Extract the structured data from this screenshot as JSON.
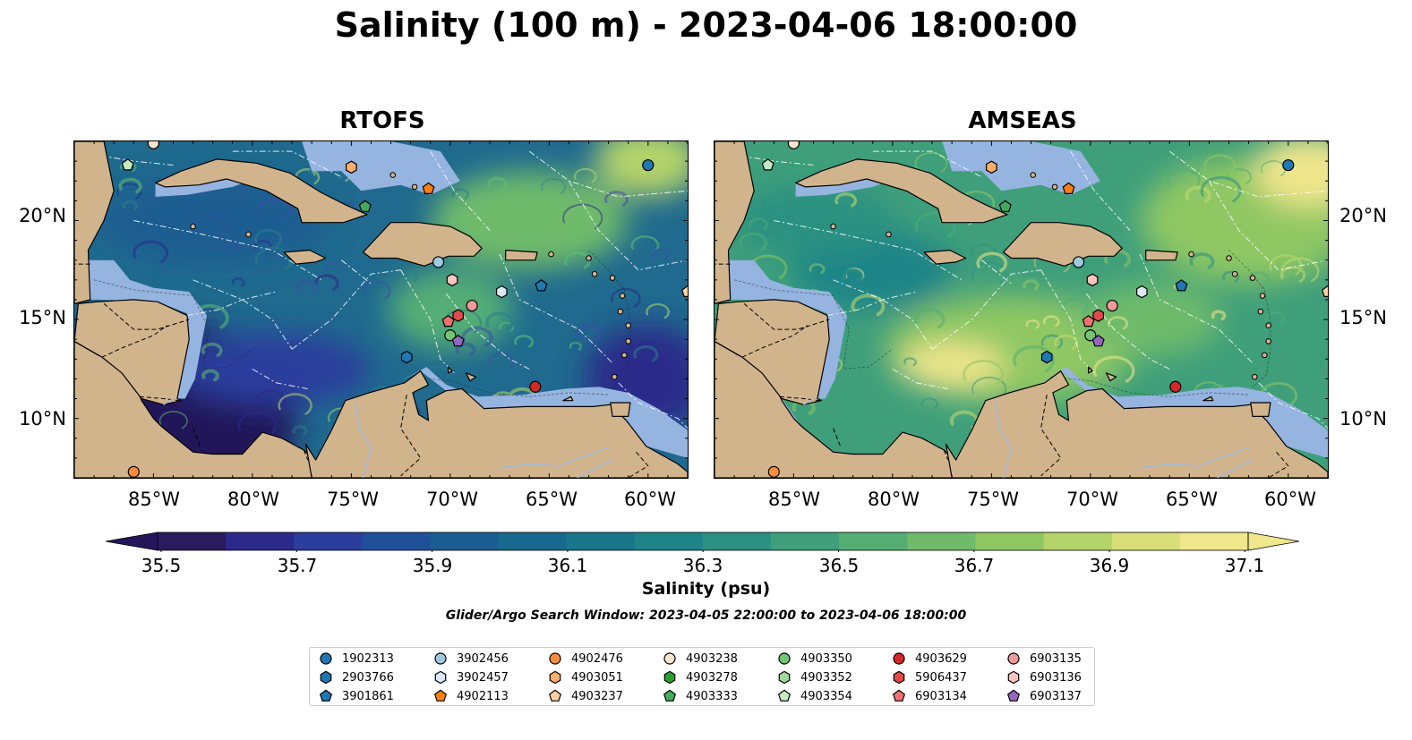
{
  "title": "Salinity (100 m) - 2023-04-06 18:00:00",
  "panels": [
    {
      "title": "RTOFS",
      "palette": "rtofs"
    },
    {
      "title": "AMSEAS",
      "palette": "amseas"
    }
  ],
  "axes": {
    "x_ticks": [
      "85°W",
      "80°W",
      "75°W",
      "70°W",
      "65°W",
      "60°W"
    ],
    "y_ticks": [
      "20°N",
      "15°N",
      "10°N"
    ],
    "lon_range": [
      -89,
      -58
    ],
    "lat_range": [
      7,
      24
    ]
  },
  "colorbar": {
    "label": "Salinity (psu)",
    "ticks": [
      "35.5",
      "35.7",
      "35.9",
      "36.1",
      "36.3",
      "36.5",
      "36.7",
      "36.9",
      "37.1"
    ],
    "colors": [
      "#2a1a5e",
      "#2b2a8a",
      "#2b3d9d",
      "#1f4f99",
      "#1a5d91",
      "#176a8d",
      "#1a768b",
      "#1f8488",
      "#2c9181",
      "#3f9f7b",
      "#55ae74",
      "#6fbb6b",
      "#8fc763",
      "#b4d36a",
      "#d8df78",
      "#f0e68c"
    ],
    "extend": "both"
  },
  "search_window": "Glider/Argo Search Window: 2023-04-05 22:00:00 to 2023-04-06 18:00:00",
  "colors": {
    "land": "#d2b48c",
    "shelf": "#95b4e0",
    "low_sal": "#23175a",
    "mid_sal": "#1e6d8c",
    "high_sal": "#f0e68c"
  },
  "legend": [
    {
      "id": "1902313",
      "color": "#1f77b4",
      "shape": "circle"
    },
    {
      "id": "2903766",
      "color": "#1f77b4",
      "shape": "hexagon"
    },
    {
      "id": "3901861",
      "color": "#1f77b4",
      "shape": "pentagon"
    },
    {
      "id": "3902456",
      "color": "#9ecae1",
      "shape": "circle"
    },
    {
      "id": "3902457",
      "color": "#dbe9f6",
      "shape": "hexagon"
    },
    {
      "id": "4902113",
      "color": "#fd7f0e",
      "shape": "pentagon"
    },
    {
      "id": "4902476",
      "color": "#fd8d3c",
      "shape": "circle"
    },
    {
      "id": "4903051",
      "color": "#fdae6b",
      "shape": "hexagon"
    },
    {
      "id": "4903237",
      "color": "#fdd0a2",
      "shape": "pentagon"
    },
    {
      "id": "4903238",
      "color": "#fde4cc",
      "shape": "circle"
    },
    {
      "id": "4903278",
      "color": "#2ca02c",
      "shape": "hexagon"
    },
    {
      "id": "4903333",
      "color": "#41ab5d",
      "shape": "pentagon"
    },
    {
      "id": "4903350",
      "color": "#74c476",
      "shape": "circle"
    },
    {
      "id": "4903352",
      "color": "#a1d99b",
      "shape": "hexagon"
    },
    {
      "id": "4903354",
      "color": "#c7e9c0",
      "shape": "pentagon"
    },
    {
      "id": "4903629",
      "color": "#d62728",
      "shape": "circle"
    },
    {
      "id": "5906437",
      "color": "#e34a4a",
      "shape": "hexagon"
    },
    {
      "id": "6903134",
      "color": "#f07070",
      "shape": "pentagon"
    },
    {
      "id": "6903135",
      "color": "#f09a9a",
      "shape": "circle"
    },
    {
      "id": "6903136",
      "color": "#fcc5c0",
      "shape": "hexagon"
    },
    {
      "id": "6903137",
      "color": "#9467bd",
      "shape": "pentagon"
    }
  ],
  "floats": [
    {
      "id": "1902313",
      "lon": -60.0,
      "lat": 22.8
    },
    {
      "id": "2903766",
      "lon": -72.2,
      "lat": 13.1
    },
    {
      "id": "3901861",
      "lon": -65.4,
      "lat": 16.7
    },
    {
      "id": "3902456",
      "lon": -70.6,
      "lat": 17.9
    },
    {
      "id": "3902457",
      "lon": -67.4,
      "lat": 16.4
    },
    {
      "id": "4902113",
      "lon": -71.1,
      "lat": 21.6
    },
    {
      "id": "4902476",
      "lon": -86.0,
      "lat": 7.3
    },
    {
      "id": "4903051",
      "lon": -75.0,
      "lat": 22.7
    },
    {
      "id": "4903237",
      "lon": -58.0,
      "lat": 16.4
    },
    {
      "id": "4903238",
      "lon": -85.0,
      "lat": 23.9
    },
    {
      "id": "4903333",
      "lon": -74.3,
      "lat": 20.7
    },
    {
      "id": "4903350",
      "lon": -70.0,
      "lat": 14.2
    },
    {
      "id": "4903354",
      "lon": -86.3,
      "lat": 22.8
    },
    {
      "id": "4903629",
      "lon": -65.7,
      "lat": 11.6
    },
    {
      "id": "5906437",
      "lon": -69.6,
      "lat": 15.2
    },
    {
      "id": "6903134",
      "lon": -70.1,
      "lat": 14.9
    },
    {
      "id": "6903135",
      "lon": -68.9,
      "lat": 15.7
    },
    {
      "id": "6903136",
      "lon": -69.9,
      "lat": 17.0
    },
    {
      "id": "6903137",
      "lon": -69.6,
      "lat": 13.9
    }
  ]
}
